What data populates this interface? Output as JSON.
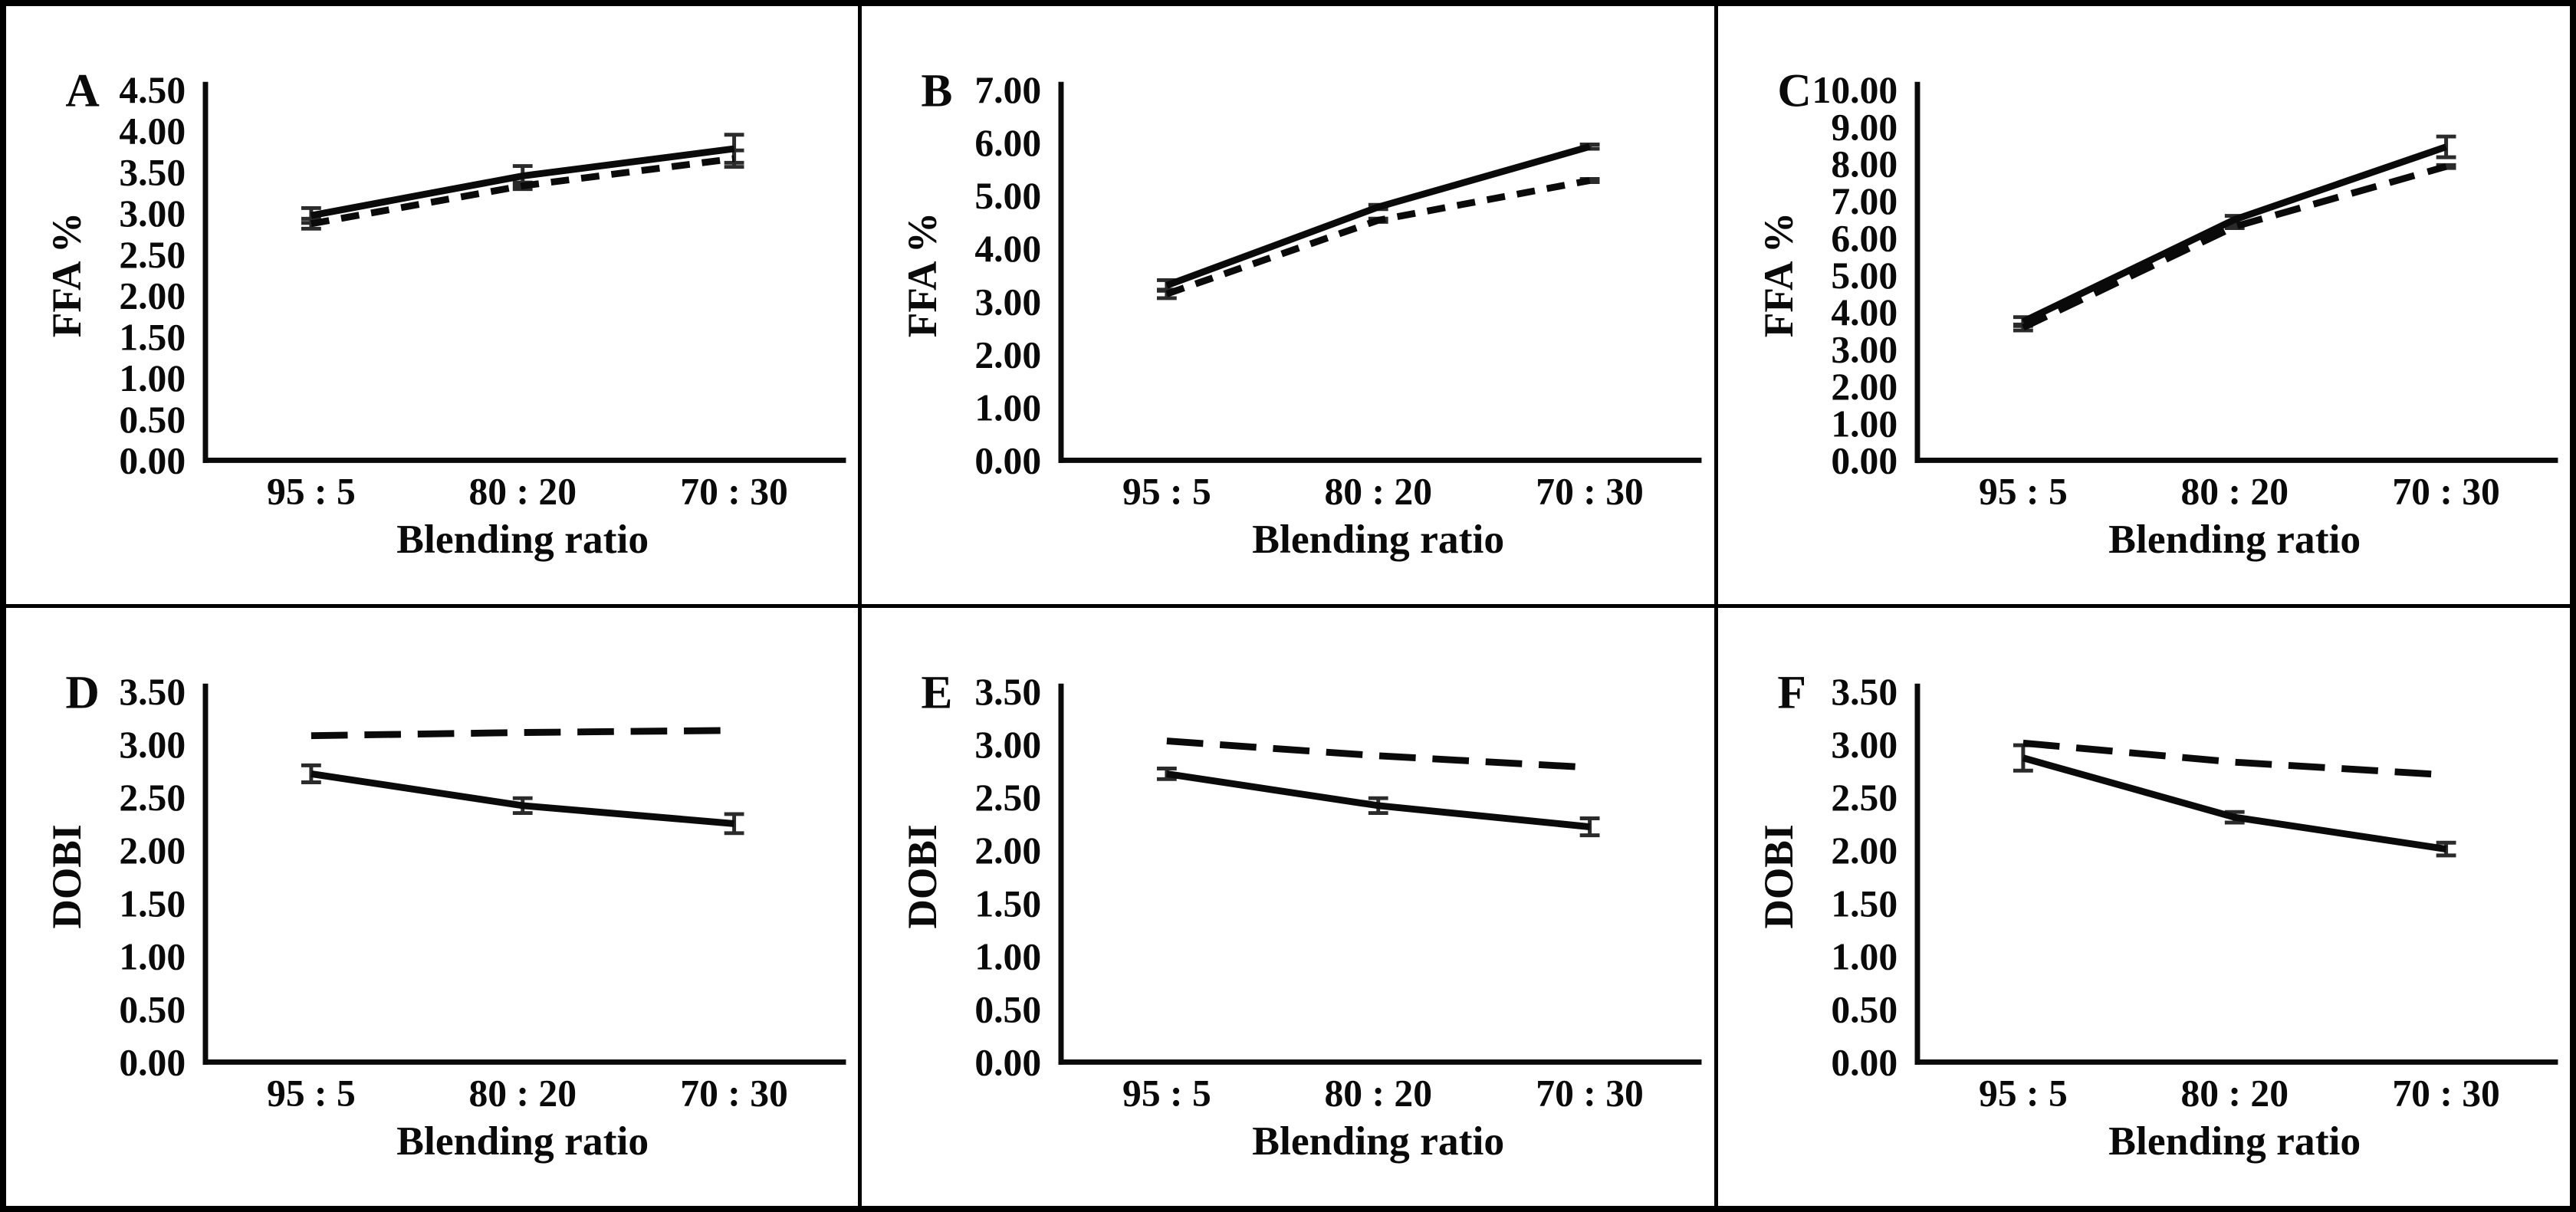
{
  "figure": {
    "background_color": "#ffffff",
    "border_color": "#000000",
    "line_color": "#0a0a0a",
    "error_bar_color": "#2b2b2b",
    "xlabel": "Blending ratio",
    "categories": [
      "95 : 5",
      "80 : 20",
      "70 : 30"
    ],
    "rows": 2,
    "columns": 3
  },
  "chart_data": [
    {
      "type": "line",
      "panel_label": "A",
      "ylabel": "FFA %",
      "xlabel": "Blending ratio",
      "categories": [
        "95 : 5",
        "80 : 20",
        "70 : 30"
      ],
      "ylim": [
        0,
        4.5
      ],
      "ytick_step": 0.5,
      "ytick_decimals": 2,
      "grid": false,
      "legend": "none",
      "series": [
        {
          "name": "solid-line",
          "line_style": "solid",
          "dash_pattern": [],
          "values": [
            2.97,
            3.45,
            3.78
          ],
          "errors": [
            0.09,
            0.12,
            0.17
          ]
        },
        {
          "name": "dashed-line",
          "line_style": "dashed",
          "dash_pattern": [
            24,
            16
          ],
          "values": [
            2.87,
            3.33,
            3.66
          ],
          "errors": [
            0.06,
            0.04,
            0.1
          ]
        }
      ]
    },
    {
      "type": "line",
      "panel_label": "B",
      "ylabel": "FFA %",
      "xlabel": "Blending ratio",
      "categories": [
        "95 : 5",
        "80 : 20",
        "70 : 30"
      ],
      "ylim": [
        0,
        7
      ],
      "ytick_step": 1,
      "ytick_decimals": 2,
      "grid": false,
      "legend": "none",
      "series": [
        {
          "name": "solid-line",
          "line_style": "solid",
          "dash_pattern": [],
          "values": [
            3.3,
            4.78,
            5.92
          ],
          "errors": [
            0.1,
            0.04,
            0.04
          ]
        },
        {
          "name": "dashed-line",
          "line_style": "dashed",
          "dash_pattern": [
            24,
            16
          ],
          "values": [
            3.14,
            4.53,
            5.28
          ],
          "errors": [
            0.08,
            0.03,
            0.03
          ]
        }
      ]
    },
    {
      "type": "line",
      "panel_label": "C",
      "ylabel": "FFA %",
      "xlabel": "Blending ratio",
      "categories": [
        "95 : 5",
        "80 : 20",
        "70 : 30"
      ],
      "ylim": [
        0,
        10
      ],
      "ytick_step": 1,
      "ytick_decimals": 2,
      "grid": false,
      "legend": "none",
      "series": [
        {
          "name": "solid-line",
          "line_style": "solid",
          "dash_pattern": [],
          "values": [
            3.74,
            6.49,
            8.45
          ],
          "errors": [
            0.12,
            0.1,
            0.28
          ]
        },
        {
          "name": "dashed-line",
          "line_style": "dashed",
          "dash_pattern": [
            34,
            18
          ],
          "values": [
            3.58,
            6.3,
            7.92
          ],
          "errors": [
            0.08,
            0.04,
            0.04
          ]
        }
      ]
    },
    {
      "type": "line",
      "panel_label": "D",
      "ylabel": "DOBI",
      "xlabel": "Blending ratio",
      "categories": [
        "95 : 5",
        "80 : 20",
        "70 : 30"
      ],
      "ylim": [
        0,
        3.5
      ],
      "ytick_step": 0.5,
      "ytick_decimals": 2,
      "grid": false,
      "legend": "none",
      "series": [
        {
          "name": "solid-line",
          "line_style": "solid",
          "dash_pattern": [],
          "values": [
            2.72,
            2.42,
            2.25
          ],
          "errors": [
            0.08,
            0.07,
            0.09
          ]
        },
        {
          "name": "dashed-line",
          "line_style": "dashed",
          "dash_pattern": [
            48,
            22
          ],
          "values": [
            3.08,
            3.11,
            3.13
          ],
          "errors": [
            0,
            0,
            0
          ]
        }
      ]
    },
    {
      "type": "line",
      "panel_label": "E",
      "ylabel": "DOBI",
      "xlabel": "Blending ratio",
      "categories": [
        "95 : 5",
        "80 : 20",
        "70 : 30"
      ],
      "ylim": [
        0,
        3.5
      ],
      "ytick_step": 0.5,
      "ytick_decimals": 2,
      "grid": false,
      "legend": "none",
      "series": [
        {
          "name": "solid-line",
          "line_style": "solid",
          "dash_pattern": [],
          "values": [
            2.72,
            2.42,
            2.22
          ],
          "errors": [
            0.05,
            0.07,
            0.08
          ]
        },
        {
          "name": "dashed-line",
          "line_style": "dashed",
          "dash_pattern": [
            48,
            22
          ],
          "values": [
            3.03,
            2.89,
            2.78
          ],
          "errors": [
            0,
            0,
            0
          ]
        }
      ]
    },
    {
      "type": "line",
      "panel_label": "F",
      "ylabel": "DOBI",
      "xlabel": "Blending ratio",
      "categories": [
        "95 : 5",
        "80 : 20",
        "70 : 30"
      ],
      "ylim": [
        0,
        3.5
      ],
      "ytick_step": 0.5,
      "ytick_decimals": 2,
      "grid": false,
      "legend": "none",
      "series": [
        {
          "name": "solid-line",
          "line_style": "solid",
          "dash_pattern": [],
          "values": [
            2.87,
            2.31,
            2.01
          ],
          "errors": [
            0.12,
            0.05,
            0.06
          ]
        },
        {
          "name": "dashed-line",
          "line_style": "dashed",
          "dash_pattern": [
            48,
            22
          ],
          "values": [
            3.01,
            2.83,
            2.71
          ],
          "errors": [
            0,
            0,
            0
          ]
        }
      ]
    }
  ]
}
